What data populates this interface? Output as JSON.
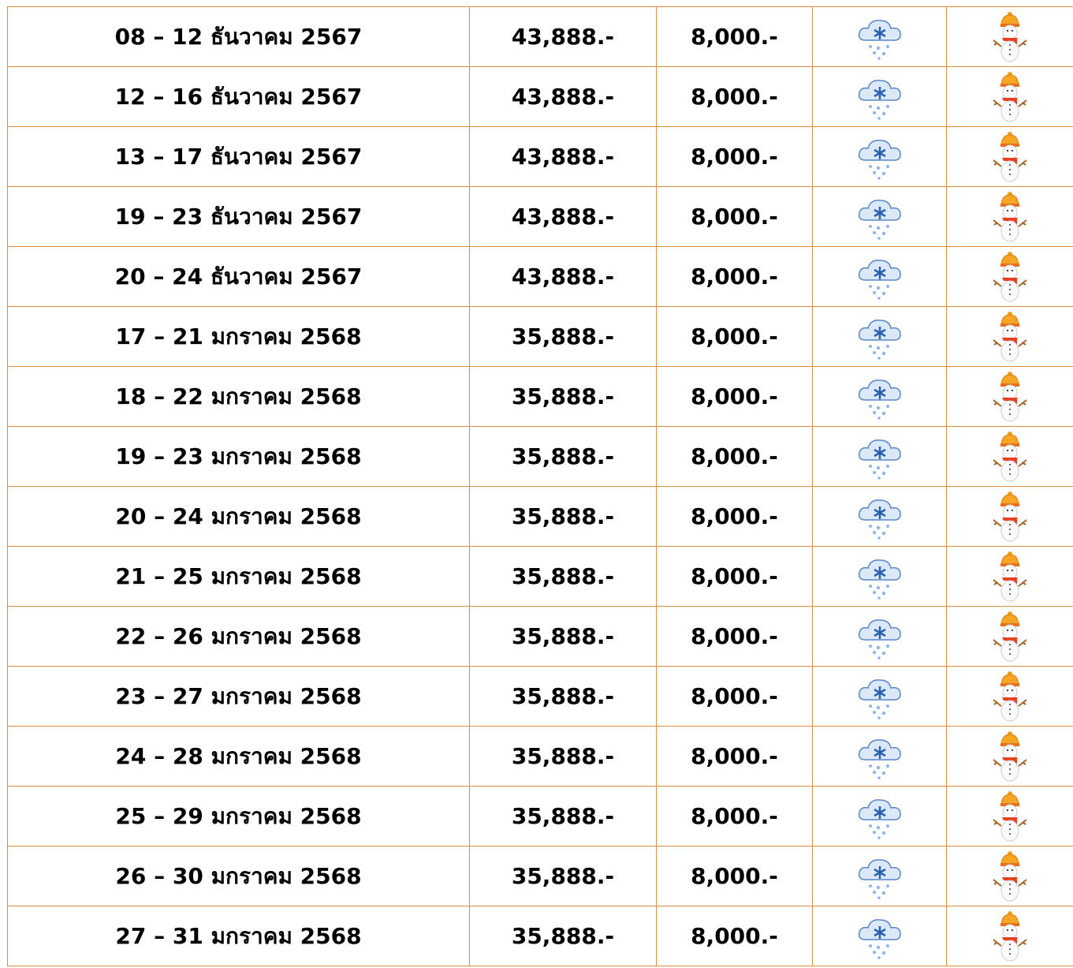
{
  "table": {
    "rows": [
      [
        "08 – 12 ธันวาคม 2567",
        "43,888.-",
        "8,000.-"
      ],
      [
        "12 – 16 ธันวาคม 2567",
        "43,888.-",
        "8,000.-"
      ],
      [
        "13 – 17 ธันวาคม 2567",
        "43,888.-",
        "8,000.-"
      ],
      [
        "19 – 23 ธันวาคม 2567",
        "43,888.-",
        "8,000.-"
      ],
      [
        "20 – 24 ธันวาคม 2567",
        "43,888.-",
        "8,000.-"
      ],
      [
        "17 – 21 มกราคม 2568",
        "35,888.-",
        "8,000.-"
      ],
      [
        "18 – 22 มกราคม 2568",
        "35,888.-",
        "8,000.-"
      ],
      [
        "19 – 23 มกราคม 2568",
        "35,888.-",
        "8,000.-"
      ],
      [
        "20 – 24 มกราคม 2568",
        "35,888.-",
        "8,000.-"
      ],
      [
        "21 – 25 มกราคม 2568",
        "35,888.-",
        "8,000.-"
      ],
      [
        "22 – 26 มกราคม 2568",
        "35,888.-",
        "8,000.-"
      ],
      [
        "23 – 27 มกราคม 2568",
        "35,888.-",
        "8,000.-"
      ],
      [
        "24 – 28 มกราคม 2568",
        "35,888.-",
        "8,000.-"
      ],
      [
        "25 – 29 มกราคม 2568",
        "35,888.-",
        "8,000.-"
      ],
      [
        "26 – 30 มกราคม 2568",
        "35,888.-",
        "8,000.-"
      ],
      [
        "27 – 31 มกราคม 2568",
        "35,888.-",
        "8,000.-"
      ]
    ]
  }
}
